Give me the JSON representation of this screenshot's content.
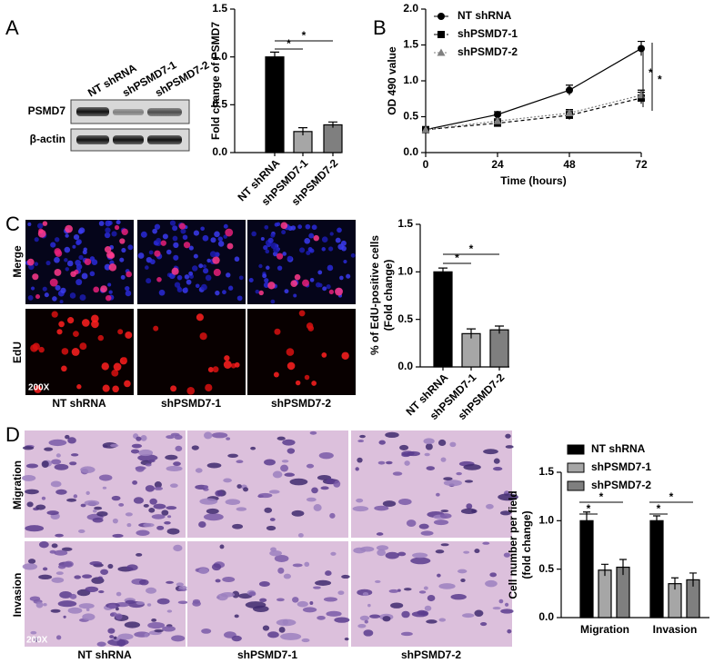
{
  "chart_data": [
    {
      "type": "bar",
      "ylabel": "Fold change of PSMD7",
      "categories": [
        "NT shRNA",
        "shPSMD7-1",
        "shPSMD7-2"
      ],
      "values": [
        1.0,
        0.22,
        0.29
      ],
      "errors": [
        0.05,
        0.04,
        0.03
      ],
      "colors": [
        "#000000",
        "#a6a6a6",
        "#7f7f7f"
      ],
      "ylim": [
        0,
        1.5
      ],
      "yticks": [
        {
          "value": 0,
          "label": "0.0"
        },
        0.5,
        {
          "value": 1,
          "label": "1.0"
        },
        1.5
      ],
      "annotations": [
        "*",
        "*"
      ]
    },
    {
      "type": "line",
      "xlabel": "Time (hours)",
      "ylabel": "OD 490 value",
      "x": [
        0,
        24,
        48,
        72
      ],
      "series": [
        {
          "name": "NT shRNA",
          "color": "#000000",
          "values": [
            0.32,
            0.53,
            0.87,
            1.45
          ],
          "errors": [
            0.02,
            0.04,
            0.07,
            0.1
          ]
        },
        {
          "name": "shPSMD7-1",
          "color": "#000000",
          "values": [
            0.32,
            0.41,
            0.52,
            0.76
          ],
          "errors": [
            0.02,
            0.03,
            0.06,
            0.08
          ]
        },
        {
          "name": "shPSMD7-2",
          "color": "#808080",
          "values": [
            0.32,
            0.44,
            0.55,
            0.8
          ],
          "errors": [
            0.02,
            0.03,
            0.05,
            0.07
          ]
        }
      ],
      "xlim": [
        0,
        72
      ],
      "xticks": [
        0,
        24,
        48,
        72
      ],
      "ylim": [
        0,
        2
      ],
      "yticks": [
        {
          "value": 0,
          "label": "0.0"
        },
        0.5,
        {
          "value": 1,
          "label": "1.0"
        },
        1.5,
        {
          "value": 2,
          "label": "2.0"
        }
      ],
      "annotations": [
        "*",
        "*"
      ]
    },
    {
      "type": "bar",
      "ylabel": [
        "% of EdU-positive cells",
        "(Fold change)"
      ],
      "categories": [
        "NT shRNA",
        "shPSMD7-1",
        "shPSMD7-2"
      ],
      "values": [
        1.0,
        0.35,
        0.39
      ],
      "errors": [
        0.04,
        0.05,
        0.04
      ],
      "colors": [
        "#000000",
        "#a6a6a6",
        "#7f7f7f"
      ],
      "ylim": [
        0,
        1.5
      ],
      "yticks": [
        {
          "value": 0,
          "label": "0.0"
        },
        0.5,
        {
          "value": 1,
          "label": "1.0"
        },
        1.5
      ],
      "annotations": [
        "*",
        "*"
      ]
    },
    {
      "type": "grouped-bar",
      "ylabel": [
        "Cell number per field",
        "(fold change)"
      ],
      "categories": [
        "Migration",
        "Invasion"
      ],
      "series": [
        {
          "name": "NT shRNA",
          "color": "#000000",
          "values": [
            1.0,
            1.0
          ],
          "errors": [
            0.09,
            0.05
          ]
        },
        {
          "name": "shPSMD7-1",
          "color": "#a6a6a6",
          "values": [
            0.49,
            0.35
          ],
          "errors": [
            0.06,
            0.06
          ]
        },
        {
          "name": "shPSMD7-2",
          "color": "#7f7f7f",
          "values": [
            0.52,
            0.39
          ],
          "errors": [
            0.08,
            0.07
          ]
        }
      ],
      "ylim": [
        0,
        1.5
      ],
      "yticks": [
        {
          "value": 0,
          "label": "0.0"
        },
        0.5,
        {
          "value": 1,
          "label": "1.0"
        },
        1.5
      ],
      "annotations": [
        "*",
        "*",
        "*",
        "*"
      ]
    }
  ],
  "panel_labels": [
    "A",
    "B",
    "C",
    "D"
  ],
  "blot": {
    "rows": [
      "PSMD7",
      "β-actin"
    ],
    "columns": [
      "NT shRNA",
      "shPSMD7-1",
      "shPSMD7-2"
    ]
  },
  "edu_images": {
    "rows": [
      "Merge",
      "EdU"
    ],
    "columns": [
      "NT shRNA",
      "shPSMD7-1",
      "shPSMD7-2"
    ],
    "magnification": "200X"
  },
  "transwell_images": {
    "rows": [
      "Migration",
      "Invasion"
    ],
    "columns": [
      "NT shRNA",
      "shPSMD7-1",
      "shPSMD7-2"
    ],
    "magnification": "200X"
  }
}
